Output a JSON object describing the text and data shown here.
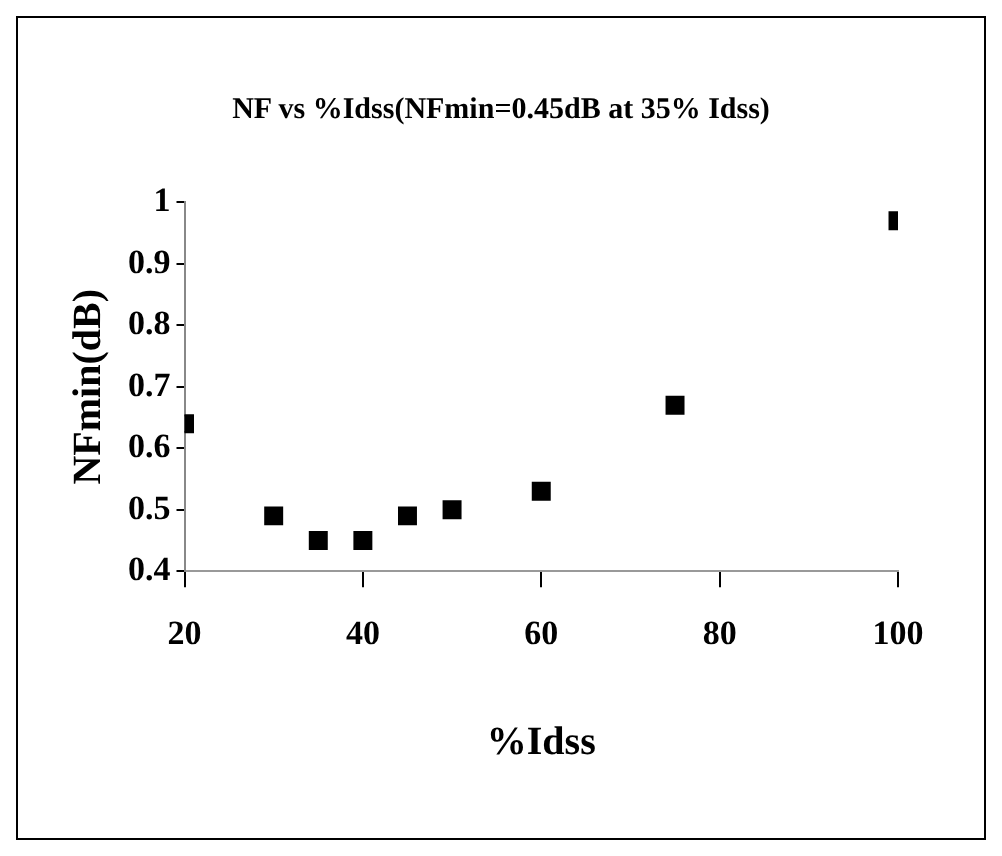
{
  "chart_data": {
    "type": "scatter",
    "title": "NF  vs %Idss(NFmin=0.45dB at 35% Idss)",
    "xlabel": "%Idss",
    "ylabel": "NFmin(dB)",
    "x": [
      20,
      30,
      35,
      40,
      45,
      50,
      60,
      75,
      100
    ],
    "series": [
      {
        "color": "#000000",
        "values": [
          0.64,
          0.49,
          0.45,
          0.45,
          0.49,
          0.5,
          0.53,
          0.67,
          0.97
        ]
      }
    ],
    "xlim": [
      20,
      100
    ],
    "xticks": [
      20,
      40,
      60,
      80,
      100
    ],
    "ylim": [
      0.4,
      1
    ],
    "yticks": [
      0.4,
      0.5,
      0.6,
      0.7,
      0.8,
      0.9,
      1
    ],
    "grid": false,
    "legend": false,
    "marker": "square"
  }
}
